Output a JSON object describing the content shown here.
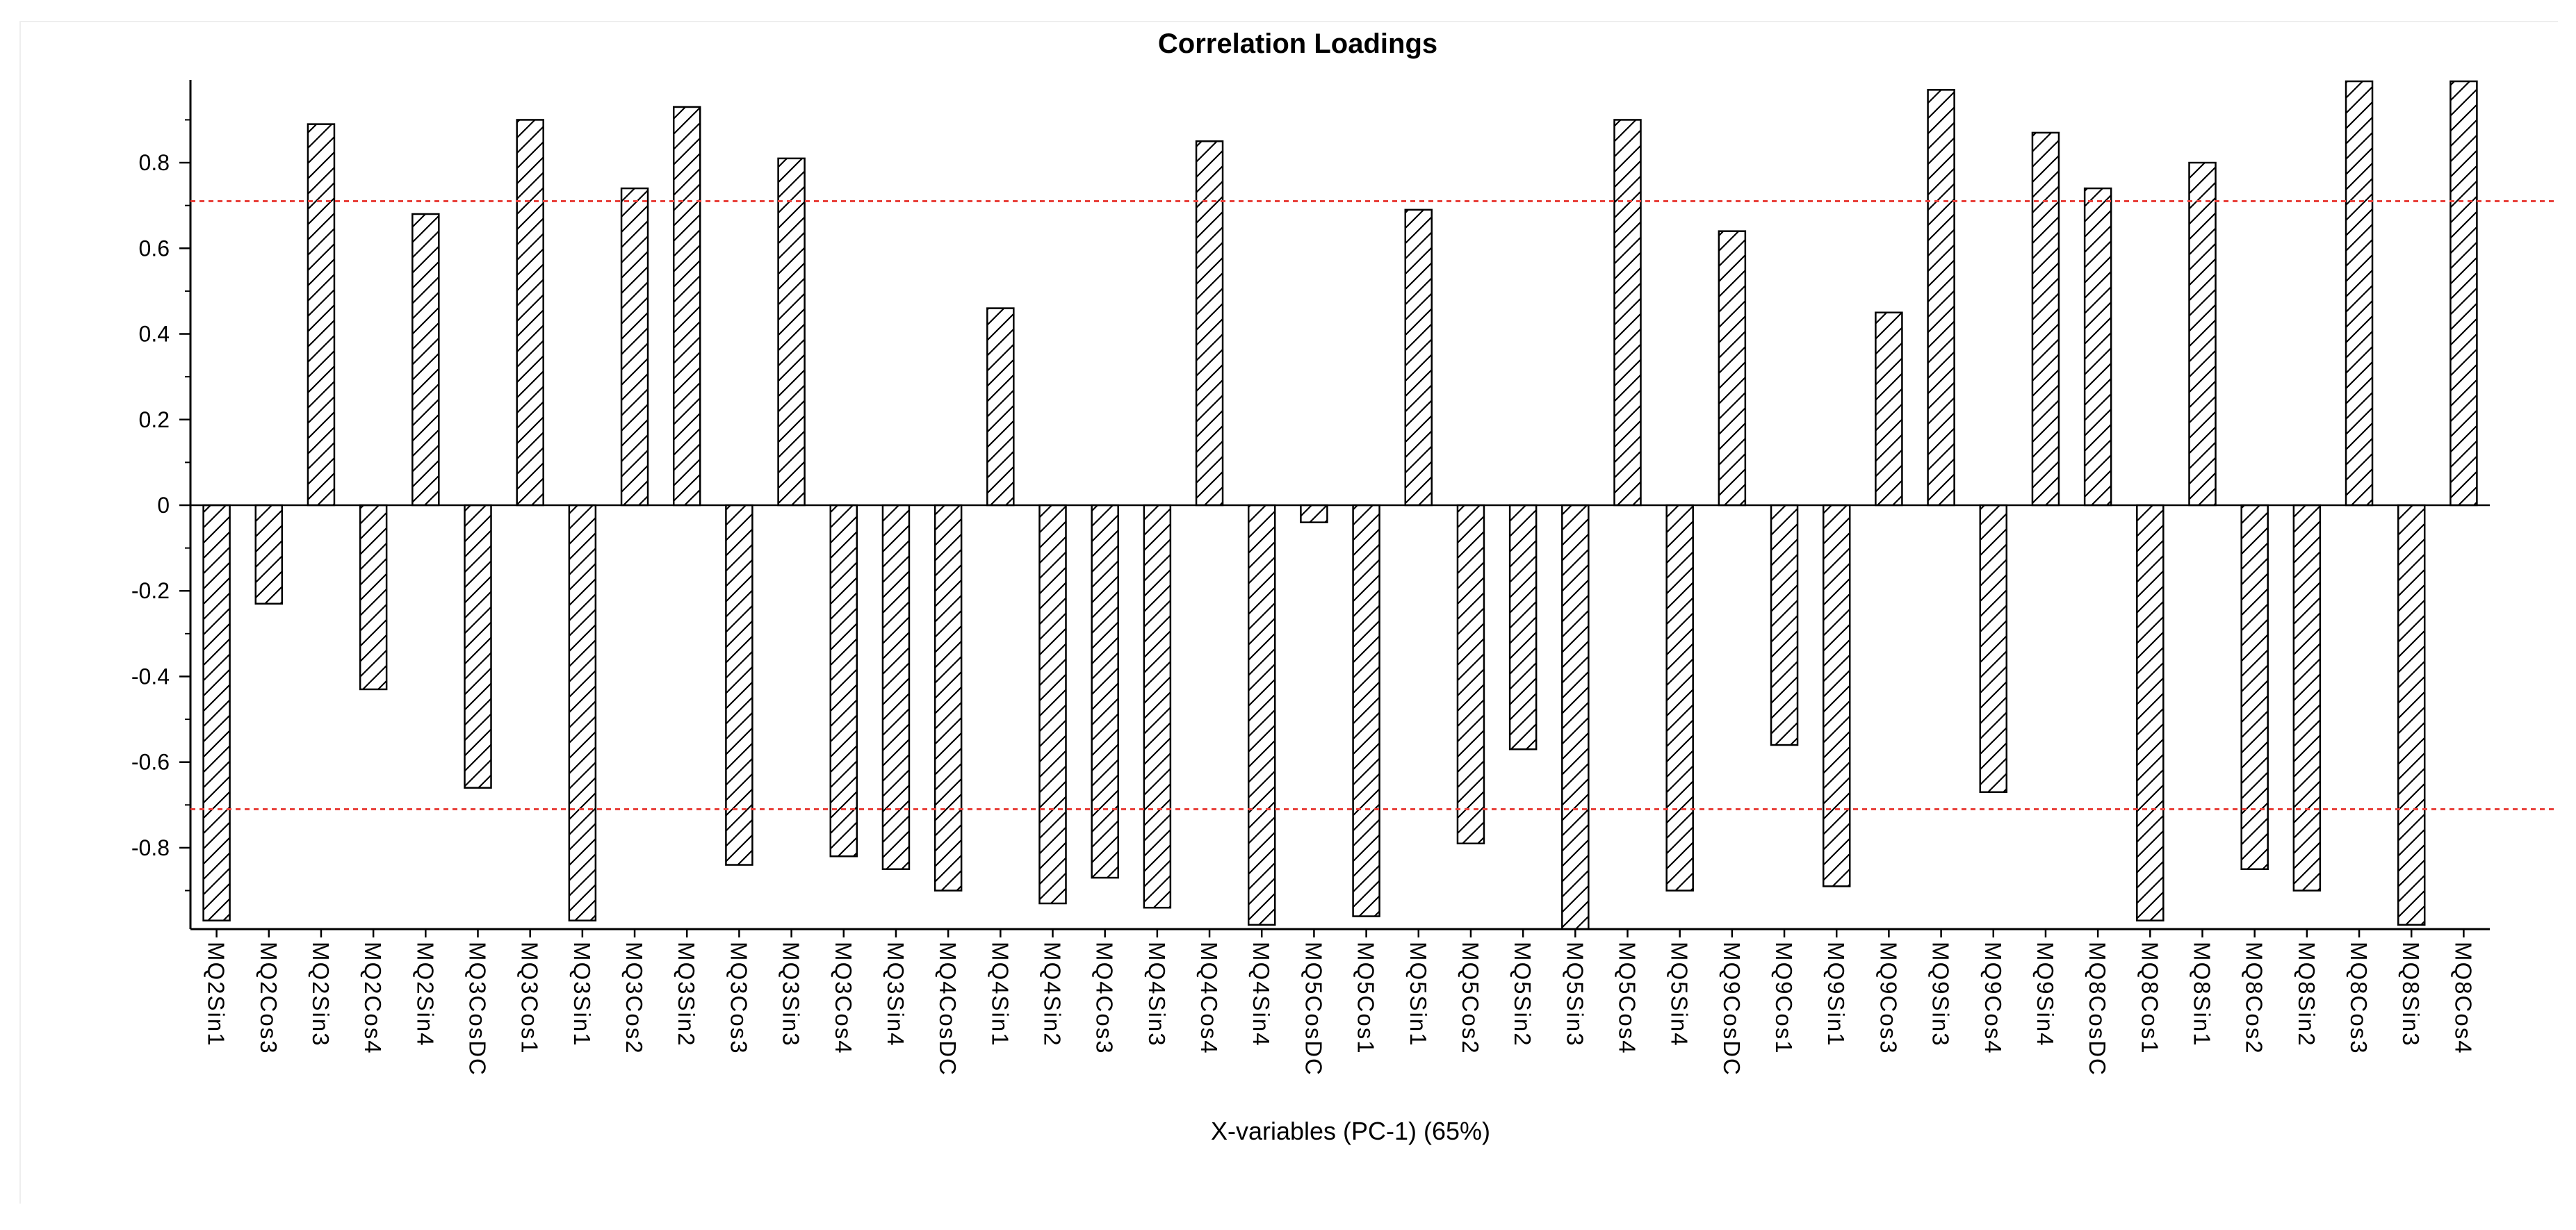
{
  "chart_data": {
    "type": "bar",
    "title": "Correlation Loadings",
    "xlabel": "X-variables (PC-1) (65%)",
    "ylabel": "",
    "ylim": [
      -0.99,
      0.99
    ],
    "yticks": [
      -0.8,
      -0.6,
      -0.4,
      -0.2,
      0,
      0.2,
      0.4,
      0.6,
      0.8
    ],
    "ytick_labels": [
      "-0.8",
      "-0.6",
      "-0.4",
      "-0.2",
      "0",
      "0.2",
      "0.4",
      "0.6",
      "0.8"
    ],
    "reference_lines": [
      0.71,
      -0.71
    ],
    "reference_line_color": "#e8403a",
    "bar_fill": "hatched",
    "grid": false,
    "categories": [
      "MQ2Sin1",
      "MQ2Cos3",
      "MQ2Sin3",
      "MQ2Cos4",
      "MQ2Sin4",
      "MQ3CosDC",
      "MQ3Cos1",
      "MQ3Sin1",
      "MQ3Cos2",
      "MQ3Sin2",
      "MQ3Cos3",
      "MQ3Sin3",
      "MQ3Cos4",
      "MQ3Sin4",
      "MQ4CosDC",
      "MQ4Sin1",
      "MQ4Sin2",
      "MQ4Cos3",
      "MQ4Sin3",
      "MQ4Cos4",
      "MQ4Sin4",
      "MQ5CosDC",
      "MQ5Cos1",
      "MQ5Sin1",
      "MQ5Cos2",
      "MQ5Sin2",
      "MQ5Sin3",
      "MQ5Cos4",
      "MQ5Sin4",
      "MQ9CosDC",
      "MQ9Cos1",
      "MQ9Sin1",
      "MQ9Cos3",
      "MQ9Sin3",
      "MQ9Cos4",
      "MQ9Sin4",
      "MQ8CosDC",
      "MQ8Cos1",
      "MQ8Sin1",
      "MQ8Cos2",
      "MQ8Sin2",
      "MQ8Cos3",
      "MQ8Sin3",
      "MQ8Cos4"
    ],
    "values": [
      -0.97,
      -0.23,
      0.89,
      -0.43,
      0.68,
      -0.66,
      0.9,
      -0.97,
      0.74,
      0.93,
      -0.84,
      0.81,
      -0.82,
      -0.85,
      -0.9,
      0.46,
      -0.93,
      -0.87,
      -0.94,
      0.85,
      -0.98,
      -0.04,
      -0.96,
      0.69,
      -0.79,
      -0.57,
      -0.99,
      0.9,
      -0.9,
      0.64,
      -0.56,
      -0.89,
      0.45,
      0.97,
      -0.67,
      0.87,
      0.74,
      -0.97,
      0.8,
      -0.85,
      -0.9,
      0.99,
      -0.98,
      0.99
    ]
  }
}
